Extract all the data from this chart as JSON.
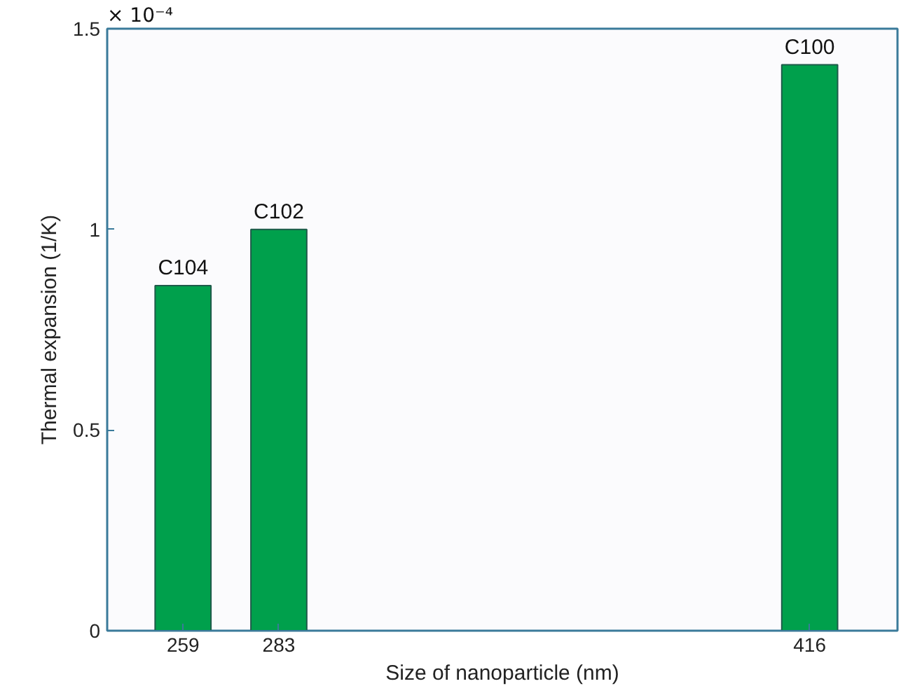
{
  "chart_data": {
    "type": "bar",
    "xlabel": "Size of nanoparticle (nm)",
    "ylabel": "Thermal expansion (1/K)",
    "x": [
      259,
      283,
      416
    ],
    "values": [
      0.86,
      1.0,
      1.41
    ],
    "color": "#00a04c",
    "xlim": [
      240,
      438
    ],
    "xticks": [
      259,
      283,
      416
    ],
    "ylim": [
      0,
      1.5
    ],
    "yticks": [
      0,
      0.5,
      1,
      1.5
    ],
    "grid": false,
    "annotations": [
      "× 10⁻⁴",
      {
        "text": "C104",
        "x": 259,
        "y": 0.86
      },
      {
        "text": "C102",
        "x": 283,
        "y": 1.0
      },
      {
        "text": "C100",
        "x": 416,
        "y": 1.41
      }
    ]
  }
}
